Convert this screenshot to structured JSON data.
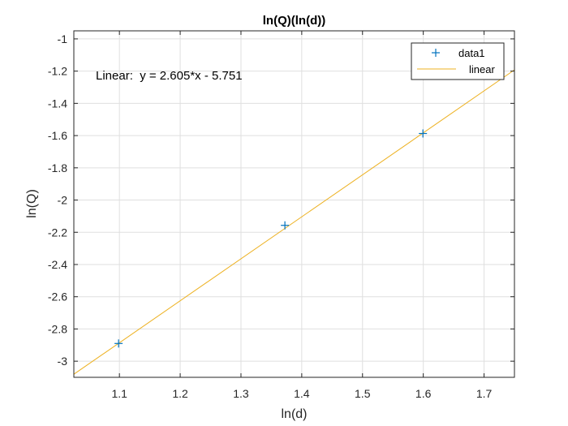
{
  "chart_data": {
    "type": "scatter",
    "title": "ln(Q)(ln(d))",
    "xlabel": "ln(d)",
    "ylabel": "ln(Q)",
    "xlim": [
      1.025,
      1.75
    ],
    "ylim": [
      -3.1,
      -0.95
    ],
    "xticks": [
      1.1,
      1.2,
      1.3,
      1.4,
      1.5,
      1.6,
      1.7
    ],
    "xtick_labels": [
      "1.1",
      "1.2",
      "1.3",
      "1.4",
      "1.5",
      "1.6",
      "1.7"
    ],
    "yticks": [
      -3,
      -2.8,
      -2.6,
      -2.4,
      -2.2,
      -2,
      -1.8,
      -1.6,
      -1.4,
      -1.2,
      -1
    ],
    "ytick_labels": [
      "-3",
      "-2.8",
      "-2.6",
      "-2.4",
      "-2.2",
      "-2",
      "-1.8",
      "-1.6",
      "-1.4",
      "-1.2",
      "-1"
    ],
    "grid": true,
    "legend_location": "top-right",
    "series": [
      {
        "name": "data1",
        "type": "scatter",
        "marker": "+",
        "color": "#0072BD",
        "x": [
          1.0986,
          1.3723,
          1.5994
        ],
        "y": [
          -2.89,
          -2.157,
          -1.587
        ]
      },
      {
        "name": "linear",
        "type": "line",
        "color": "#EDB120",
        "slope": 2.605,
        "intercept": -5.751
      }
    ],
    "annotation": "Linear:  y = 2.605*x - 5.751"
  }
}
